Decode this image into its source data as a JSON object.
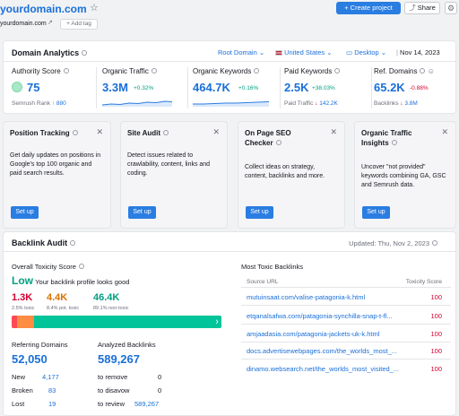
{
  "header": {
    "domain": "yourdomain.com",
    "domain_sub": "yourdomain.com",
    "add_tag": "+ Add tag",
    "create_project": "+ Create project",
    "share": "Share"
  },
  "analytics": {
    "title": "Domain Analytics",
    "root_domain": "Root Domain",
    "country": "United States",
    "device": "Desktop",
    "date": "Nov 14, 2023",
    "kpis": [
      {
        "title": "Authority Score",
        "value": "75",
        "sub_label": "Semrush Rank",
        "sub_value": "880"
      },
      {
        "title": "Organic Traffic",
        "value": "3.3M",
        "change": "+0.32%"
      },
      {
        "title": "Organic Keywords",
        "value": "464.7K",
        "change": "+0.16%"
      },
      {
        "title": "Paid Keywords",
        "value": "2.5K",
        "change": "+38.03%",
        "sub_label": "Paid Traffic",
        "sub_value": "142.2K"
      },
      {
        "title": "Ref. Domains",
        "value": "65.2K",
        "change": "-0.88%",
        "sub_label": "Backlinks",
        "sub_value": "3.8M"
      }
    ]
  },
  "tools": [
    {
      "title": "Position Tracking",
      "desc": "Get daily updates on positions in Google's top 100 organic and paid search results.",
      "button": "Set up"
    },
    {
      "title": "Site Audit",
      "desc": "Detect issues related to crawlability, content, links and coding.",
      "button": "Set up"
    },
    {
      "title": "On Page SEO Checker",
      "desc": "Collect ideas on strategy, content, backlinks and more.",
      "button": "Set up"
    },
    {
      "title": "Organic Traffic Insights",
      "desc": "Uncover \"not provided\" keywords combining GA, GSC and Semrush data.",
      "button": "Set up"
    }
  ],
  "backlink": {
    "title": "Backlink Audit",
    "updated": "Updated: Thu, Nov 2, 2023",
    "toxicity_title": "Overall Toxicity Score",
    "toxicity_level": "Low",
    "toxicity_msg": "Your backlink profile looks good",
    "scores": [
      {
        "value": "1.3K",
        "label": "2.5% toxic",
        "pct": 2.5
      },
      {
        "value": "4.4K",
        "label": "8.4% pot. toxic",
        "pct": 8.4
      },
      {
        "value": "46.4K",
        "label": "89.1% non-toxic",
        "pct": 89.1
      }
    ],
    "referring_title": "Referring Domains",
    "referring_value": "52,050",
    "referring_rows": [
      {
        "label": "New",
        "value": "4,177"
      },
      {
        "label": "Broken",
        "value": "83"
      },
      {
        "label": "Lost",
        "value": "19"
      }
    ],
    "analyzed_title": "Analyzed Backlinks",
    "analyzed_value": "589,267",
    "analyzed_rows": [
      {
        "label": "to remove",
        "value": "0"
      },
      {
        "label": "to disavow",
        "value": "0"
      },
      {
        "label": "to review",
        "value": "589,267"
      }
    ],
    "toxic_title": "Most Toxic Backlinks",
    "col_url": "Source URL",
    "col_score": "Toxicity Score",
    "toxic_rows": [
      {
        "url": "mutuinsaat.com/valise-patagonia-k.html",
        "score": "100"
      },
      {
        "url": "etqanalsafwa.com/patagonia-synchilla-snap-t-fl...",
        "score": "100"
      },
      {
        "url": "amjaadasia.com/patagonia-jackets-uk-k.html",
        "score": "100"
      },
      {
        "url": "docs.advertisewebpages.com/the_worlds_most_...",
        "score": "100"
      },
      {
        "url": "dinamo.websearch.net/the_worlds_most_visited_...",
        "score": "100"
      }
    ]
  },
  "colors": {
    "toxic": "#ff4953",
    "potential": "#ff8c43",
    "safe": "#00c49a",
    "accent": "#2a7de1"
  },
  "icons": [
    "star-icon",
    "external-link-icon",
    "flag-us-icon",
    "desktop-icon",
    "calendar-icon",
    "close-icon",
    "gear-icon",
    "share-icon",
    "info-icon",
    "chevron-down-icon"
  ]
}
